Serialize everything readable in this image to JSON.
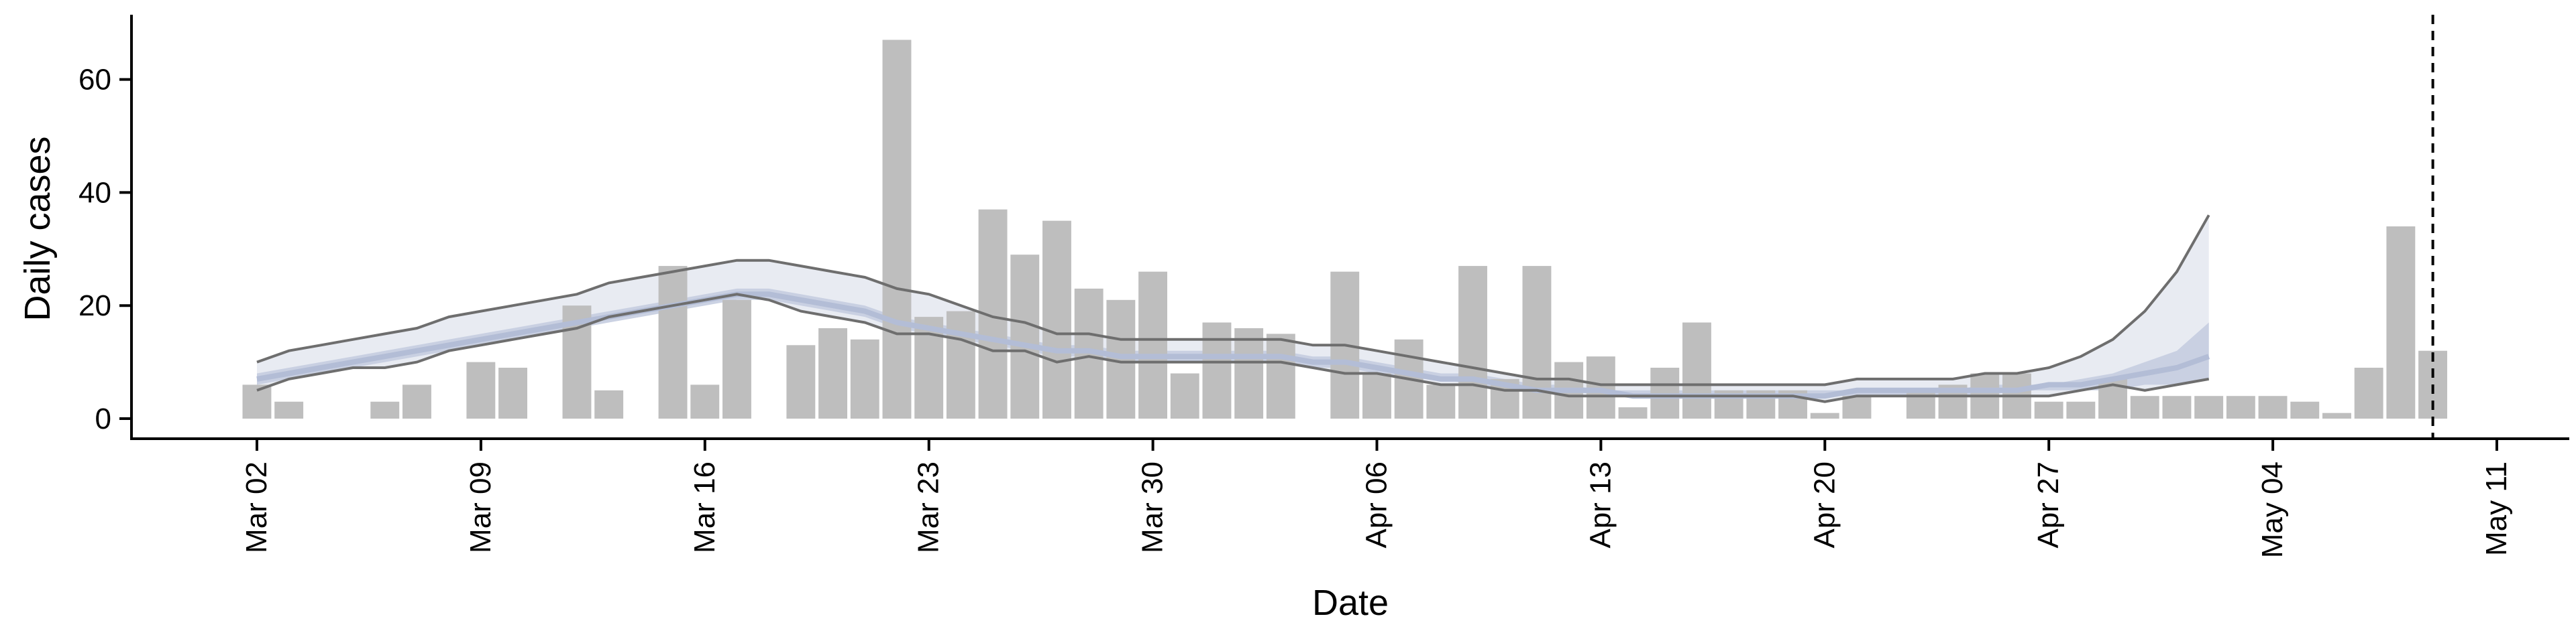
{
  "chart_data": {
    "type": "bar",
    "xlabel": "Date",
    "ylabel": "Daily cases",
    "ylim": [
      0,
      70
    ],
    "y_ticks": [
      0,
      20,
      40,
      60
    ],
    "x_ticks": [
      "Mar 02",
      "Mar 09",
      "Mar 16",
      "Mar 23",
      "Mar 30",
      "Apr 06",
      "Apr 13",
      "Apr 20",
      "Apr 27",
      "May 04",
      "May 11"
    ],
    "x_start": "Mar 02",
    "bars": [
      6,
      3,
      0,
      0,
      3,
      6,
      0,
      10,
      9,
      0,
      20,
      5,
      0,
      27,
      6,
      21,
      0,
      13,
      16,
      14,
      67,
      18,
      19,
      37,
      29,
      35,
      23,
      21,
      26,
      8,
      17,
      16,
      15,
      0,
      26,
      8,
      14,
      6,
      27,
      7,
      27,
      10,
      11,
      2,
      9,
      17,
      5,
      5,
      5,
      1,
      4,
      0,
      5,
      6,
      8,
      8,
      3,
      3,
      7,
      4,
      4,
      4,
      4,
      4,
      3,
      1,
      9,
      34,
      12
    ],
    "bar_color": "#bebebe",
    "outer_band": {
      "upper": [
        10,
        12,
        13,
        14,
        15,
        16,
        18,
        19,
        20,
        21,
        22,
        24,
        25,
        26,
        27,
        28,
        28,
        27,
        26,
        25,
        23,
        22,
        20,
        18,
        17,
        15,
        15,
        14,
        14,
        14,
        14,
        14,
        14,
        13,
        13,
        12,
        11,
        10,
        9,
        8,
        7,
        7,
        6,
        6,
        6,
        6,
        6,
        6,
        6,
        6,
        7,
        7,
        7,
        7,
        8,
        8,
        9,
        11,
        14,
        19,
        26,
        36
      ],
      "lower": [
        5,
        7,
        8,
        9,
        9,
        10,
        12,
        13,
        14,
        15,
        16,
        18,
        19,
        20,
        21,
        22,
        21,
        19,
        18,
        17,
        15,
        15,
        14,
        12,
        12,
        10,
        11,
        10,
        10,
        10,
        10,
        10,
        10,
        9,
        8,
        8,
        7,
        6,
        6,
        5,
        5,
        4,
        4,
        4,
        4,
        4,
        4,
        4,
        4,
        3,
        4,
        4,
        4,
        4,
        4,
        4,
        4,
        5,
        6,
        5,
        6,
        7
      ],
      "fill": "#e8ebf2",
      "line_color": "#6e6e6e"
    },
    "inner_band": {
      "upper": [
        8,
        9,
        10,
        11,
        12,
        13,
        14,
        15,
        16,
        17,
        18,
        19,
        20,
        21,
        22,
        23,
        23,
        22,
        21,
        20,
        18,
        17,
        16,
        15,
        14,
        13,
        13,
        12,
        12,
        12,
        12,
        12,
        12,
        11,
        11,
        10,
        9,
        8,
        8,
        7,
        6,
        6,
        5,
        5,
        5,
        5,
        5,
        5,
        5,
        5,
        5,
        5,
        5,
        5,
        6,
        6,
        6,
        7,
        8,
        10,
        12,
        17
      ],
      "lower": [
        6,
        7,
        8,
        9,
        10,
        11,
        12,
        13,
        14,
        15,
        16,
        17,
        18,
        19,
        20,
        21,
        21,
        20,
        19,
        18,
        16,
        15,
        14,
        13,
        12,
        11,
        11,
        10,
        10,
        10,
        10,
        10,
        10,
        9,
        9,
        8,
        7,
        7,
        6,
        5,
        5,
        5,
        4,
        4,
        4,
        4,
        4,
        4,
        4,
        4,
        4,
        4,
        4,
        4,
        4,
        5,
        5,
        5,
        5,
        6,
        6,
        7
      ],
      "fill": "#c5cde0"
    },
    "median": [
      7,
      8,
      9,
      10,
      11,
      12,
      13,
      14,
      15,
      16,
      17,
      18,
      19,
      20,
      21,
      22,
      22,
      21,
      20,
      19,
      17,
      16,
      15,
      14,
      13,
      12,
      12,
      11,
      11,
      11,
      11,
      11,
      11,
      10,
      10,
      9,
      8,
      7,
      7,
      6,
      5,
      5,
      5,
      4,
      4,
      4,
      4,
      4,
      4,
      4,
      5,
      5,
      5,
      5,
      5,
      5,
      6,
      6,
      7,
      8,
      9,
      11
    ],
    "median_color": "#b3bdd6",
    "vline_at": "May 09"
  }
}
